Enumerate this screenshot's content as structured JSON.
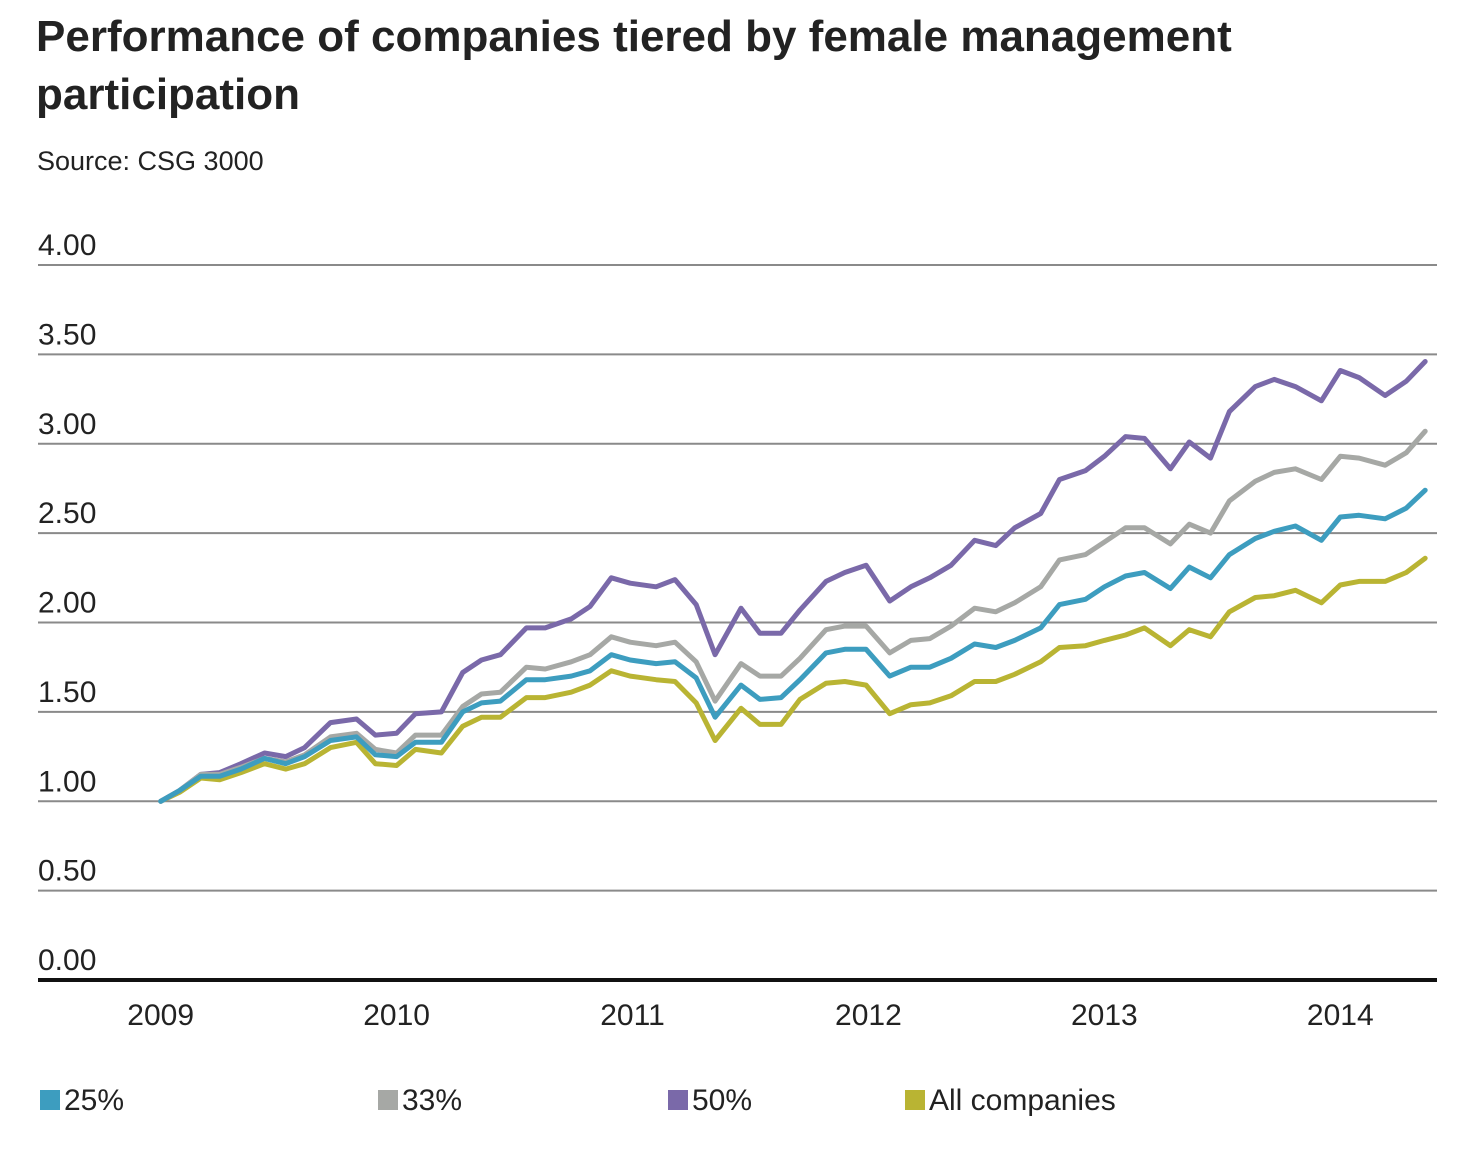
{
  "chart_data": {
    "type": "line",
    "title": "Performance of companies tiered by female management participation",
    "subtitle": "Source: CSG 3000",
    "x": [
      2009.0,
      2009.08,
      2009.17,
      2009.25,
      2009.34,
      2009.44,
      2009.53,
      2009.61,
      2009.72,
      2009.83,
      2009.91,
      2010.0,
      2010.08,
      2010.19,
      2010.28,
      2010.36,
      2010.44,
      2010.55,
      2010.63,
      2010.74,
      2010.82,
      2010.91,
      2010.99,
      2011.1,
      2011.18,
      2011.27,
      2011.35,
      2011.46,
      2011.54,
      2011.63,
      2011.71,
      2011.82,
      2011.9,
      2011.99,
      2012.09,
      2012.18,
      2012.26,
      2012.35,
      2012.45,
      2012.54,
      2012.62,
      2012.73,
      2012.81,
      2012.92,
      2013.0,
      2013.09,
      2013.17,
      2013.28,
      2013.36,
      2013.45,
      2013.53,
      2013.64,
      2013.72,
      2013.81,
      2013.92,
      2014.0,
      2014.08,
      2014.19,
      2014.28,
      2014.36
    ],
    "series": [
      {
        "name": "25%",
        "color": "#3d9dbf",
        "values": [
          1.0,
          1.06,
          1.14,
          1.14,
          1.18,
          1.24,
          1.21,
          1.25,
          1.34,
          1.36,
          1.26,
          1.25,
          1.33,
          1.33,
          1.5,
          1.55,
          1.56,
          1.68,
          1.68,
          1.7,
          1.73,
          1.82,
          1.79,
          1.77,
          1.78,
          1.69,
          1.47,
          1.65,
          1.57,
          1.58,
          1.68,
          1.83,
          1.85,
          1.85,
          1.7,
          1.75,
          1.75,
          1.8,
          1.88,
          1.86,
          1.9,
          1.97,
          2.1,
          2.13,
          2.2,
          2.26,
          2.28,
          2.19,
          2.31,
          2.25,
          2.38,
          2.47,
          2.51,
          2.54,
          2.46,
          2.59,
          2.6,
          2.58,
          2.64,
          2.74
        ]
      },
      {
        "name": "33%",
        "color": "#a6a8a5",
        "values": [
          1.0,
          1.06,
          1.15,
          1.15,
          1.19,
          1.24,
          1.22,
          1.26,
          1.36,
          1.38,
          1.29,
          1.27,
          1.37,
          1.37,
          1.53,
          1.6,
          1.61,
          1.75,
          1.74,
          1.78,
          1.82,
          1.92,
          1.89,
          1.87,
          1.89,
          1.78,
          1.56,
          1.77,
          1.7,
          1.7,
          1.8,
          1.96,
          1.98,
          1.98,
          1.83,
          1.9,
          1.91,
          1.98,
          2.08,
          2.06,
          2.11,
          2.2,
          2.35,
          2.38,
          2.45,
          2.53,
          2.53,
          2.44,
          2.55,
          2.5,
          2.68,
          2.79,
          2.84,
          2.86,
          2.8,
          2.93,
          2.92,
          2.88,
          2.95,
          3.07
        ]
      },
      {
        "name": "50%",
        "color": "#7a69a9",
        "values": [
          1.0,
          1.06,
          1.15,
          1.16,
          1.21,
          1.27,
          1.25,
          1.3,
          1.44,
          1.46,
          1.37,
          1.38,
          1.49,
          1.5,
          1.72,
          1.79,
          1.82,
          1.97,
          1.97,
          2.02,
          2.09,
          2.25,
          2.22,
          2.2,
          2.24,
          2.1,
          1.82,
          2.08,
          1.94,
          1.94,
          2.07,
          2.23,
          2.28,
          2.32,
          2.12,
          2.2,
          2.25,
          2.32,
          2.46,
          2.43,
          2.53,
          2.61,
          2.8,
          2.85,
          2.93,
          3.04,
          3.03,
          2.86,
          3.01,
          2.92,
          3.18,
          3.32,
          3.36,
          3.32,
          3.24,
          3.41,
          3.37,
          3.27,
          3.35,
          3.46
        ]
      },
      {
        "name": "All companies",
        "color": "#b9b433",
        "values": [
          1.0,
          1.05,
          1.13,
          1.12,
          1.16,
          1.21,
          1.18,
          1.21,
          1.3,
          1.33,
          1.21,
          1.2,
          1.29,
          1.27,
          1.42,
          1.47,
          1.47,
          1.58,
          1.58,
          1.61,
          1.65,
          1.73,
          1.7,
          1.68,
          1.67,
          1.55,
          1.34,
          1.52,
          1.43,
          1.43,
          1.57,
          1.66,
          1.67,
          1.65,
          1.49,
          1.54,
          1.55,
          1.59,
          1.67,
          1.67,
          1.71,
          1.78,
          1.86,
          1.87,
          1.9,
          1.93,
          1.97,
          1.87,
          1.96,
          1.92,
          2.06,
          2.14,
          2.15,
          2.18,
          2.11,
          2.21,
          2.23,
          2.23,
          2.28,
          2.36
        ]
      }
    ],
    "xlim": [
      2008.48,
      2014.41
    ],
    "xticks": [
      2009,
      2010,
      2011,
      2012,
      2013,
      2014
    ],
    "ylim": [
      0,
      4
    ],
    "yticks": [
      {
        "value": 0,
        "label": "0.00"
      },
      {
        "value": 0.5,
        "label": "0.50"
      },
      {
        "value": 1,
        "label": "1.00"
      },
      {
        "value": 1.5,
        "label": "1.50"
      },
      {
        "value": 2,
        "label": "2.00"
      },
      {
        "value": 2.5,
        "label": "2.50"
      },
      {
        "value": 3,
        "label": "3.00"
      },
      {
        "value": 3.5,
        "label": "3.50"
      },
      {
        "value": 4,
        "label": "4.00"
      }
    ],
    "grid": true,
    "legend": "bottom"
  }
}
